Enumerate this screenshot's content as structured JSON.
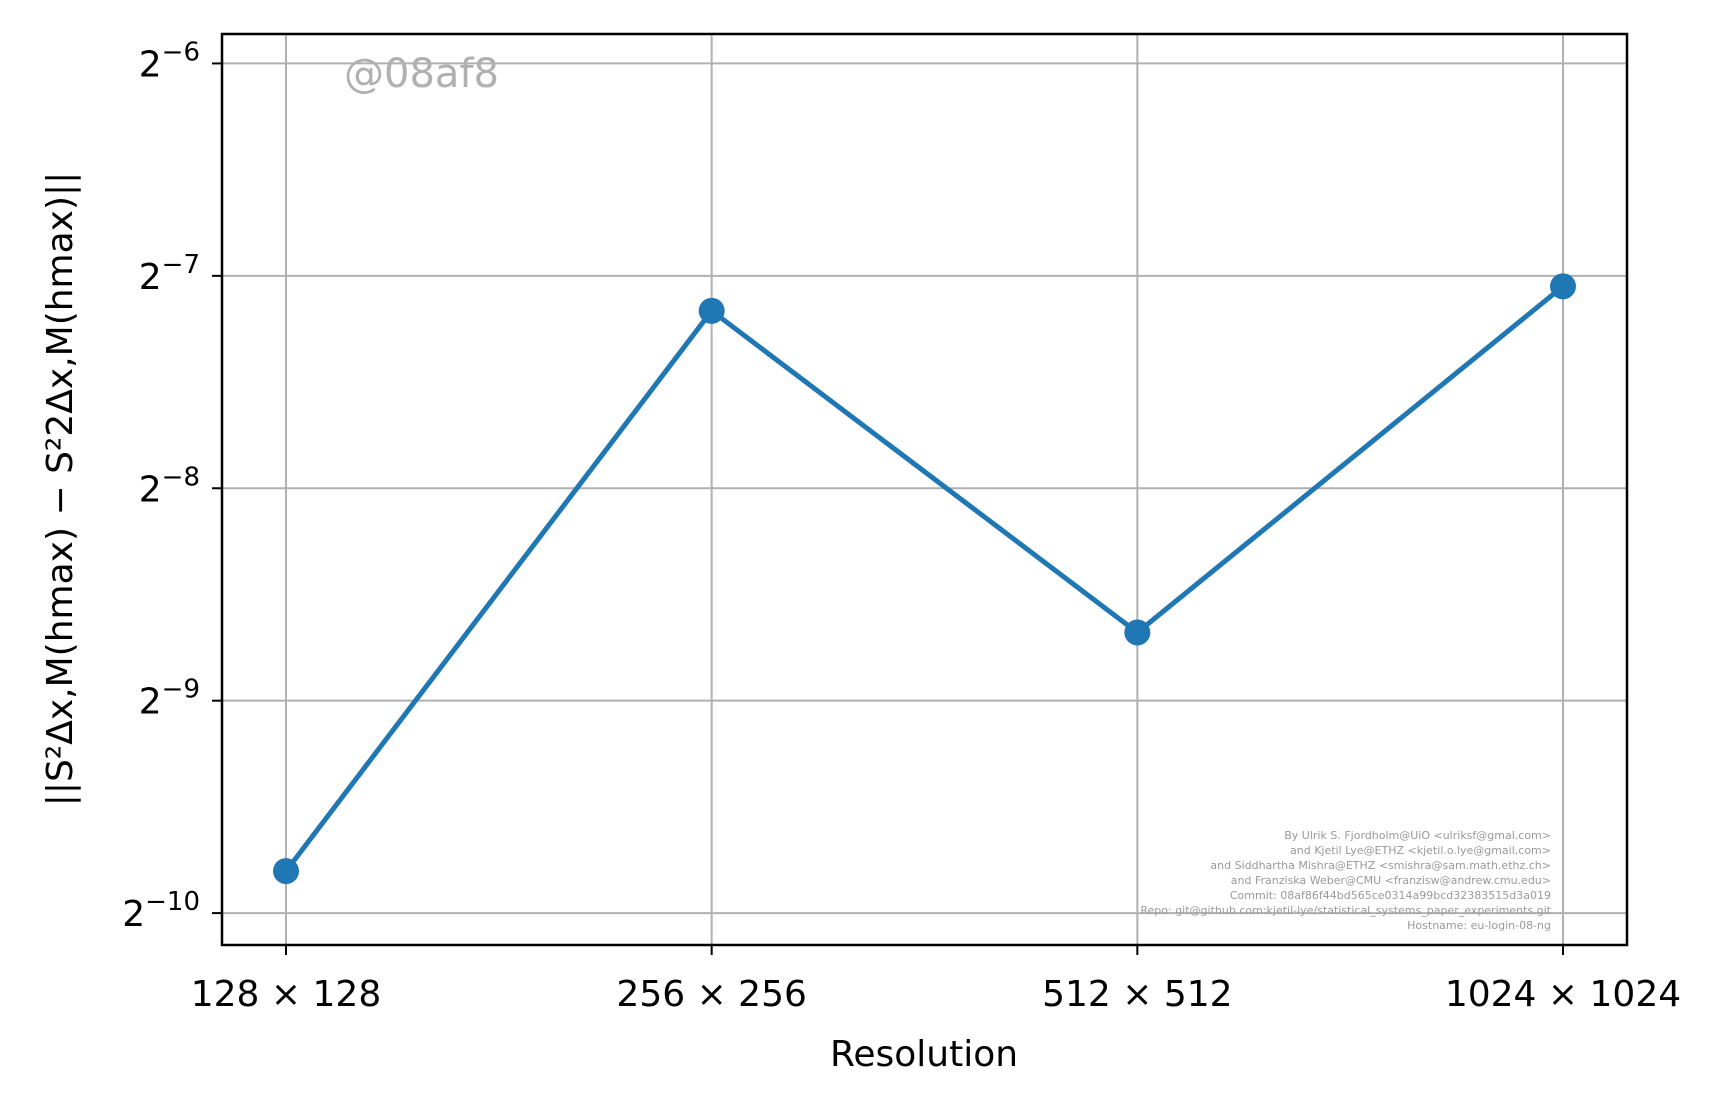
{
  "chart_data": {
    "type": "line",
    "categories": [
      "128 × 128",
      "256 × 256",
      "512 × 512",
      "1024 × 1024"
    ],
    "series": [
      {
        "values": [
          0.00112,
          0.00697,
          0.00244,
          0.00755
        ],
        "color": "#1f77b4"
      }
    ],
    "y_scale": "log2",
    "ylim": [
      0.00088,
      0.0172
    ],
    "yticks": [
      {
        "base": "2",
        "exp": "−10",
        "value": 0.0009765625
      },
      {
        "base": "2",
        "exp": "−9",
        "value": 0.001953125
      },
      {
        "base": "2",
        "exp": "−8",
        "value": 0.00390625
      },
      {
        "base": "2",
        "exp": "−7",
        "value": 0.0078125
      },
      {
        "base": "2",
        "exp": "−6",
        "value": 0.015625
      }
    ],
    "xlabel": "Resolution",
    "ylabel": "||S²Δx,M(hmax) − S²2Δx,M(hmax)||",
    "grid": true,
    "watermark": "@08af8",
    "credits": [
      "By Ulrik S. Fjordholm@UiO <ulriksf@gmal.com>",
      "and Kjetil Lye@ETHZ <kjetil.o.lye@gmail.com>",
      "and Siddhartha Mishra@ETHZ <smishra@sam.math.ethz.ch>",
      "and Franziska Weber@CMU <franzisw@andrew.cmu.edu>",
      "Commit: 08af86f44bd565ce0314a99bcd32383515d3a019",
      "Repo: git@github.com:kjetil-lye/statistical_systems_paper_experiments.git",
      "Hostname: eu-login-08-ng"
    ]
  }
}
